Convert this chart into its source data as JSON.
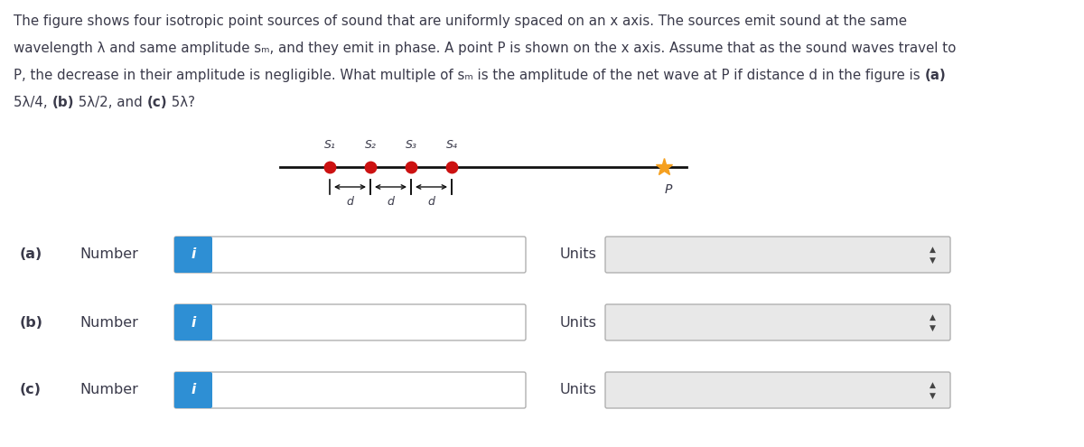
{
  "bg_color": "#ffffff",
  "text_color": "#3a3a4a",
  "source_color": "#cc1111",
  "point_P_color": "#f5a020",
  "line_color": "#111111",
  "blue_button_color": "#2e8fd4",
  "input_box_bg": "#ffffff",
  "dropdown_bg": "#e8e8e8",
  "border_color": "#b0b0b0",
  "title_lines": [
    "The figure shows four isotropic point sources of sound that are uniformly spaced on an x axis. The sources emit sound at the same",
    "wavelength λ and same amplitude sₘ, and they emit in phase. A point P is shown on the x axis. Assume that as the sound waves travel to",
    "P, the decrease in their amplitude is negligible. What multiple of sₘ is the amplitude of the net wave at P if distance d in the figure is (a)",
    "5λ/4, (b) 5λ/2, and (c) 5λ?"
  ],
  "title_bold_segments": [
    [],
    [],
    [
      "(a)"
    ],
    [
      "(b)",
      "(c)"
    ]
  ],
  "sources": [
    "S₁",
    "S₂",
    "S₃",
    "S₄"
  ],
  "row_labels": [
    "(a)",
    "(b)",
    "(c)"
  ]
}
